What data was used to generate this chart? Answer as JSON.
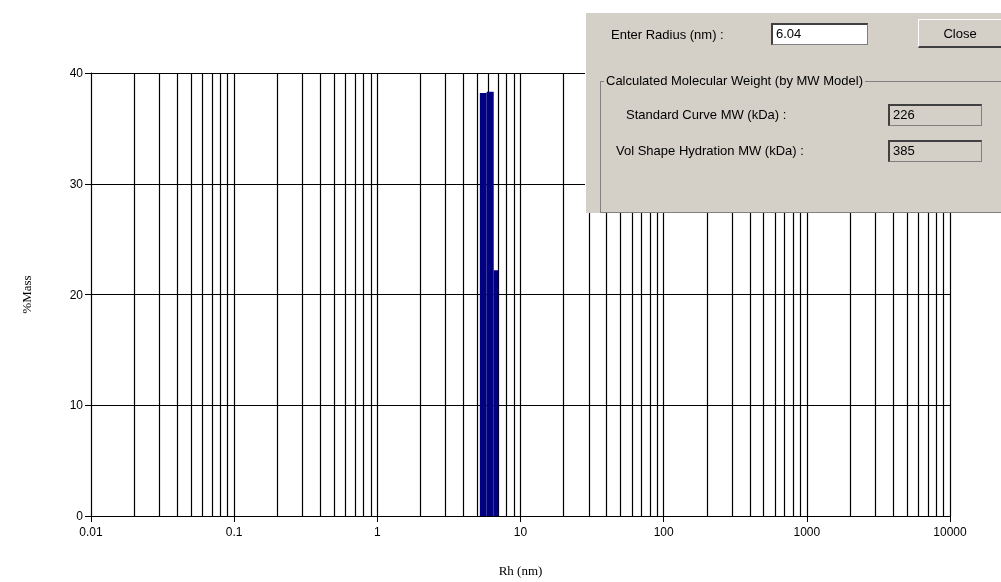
{
  "chart_data": {
    "type": "histogram",
    "xlabel": "Rh (nm)",
    "ylabel": "%Mass",
    "bins": [
      5.2,
      5.8,
      6.5,
      7.0
    ],
    "values": [
      38.2,
      38.3,
      22.2
    ],
    "color": "#000080",
    "log": "x",
    "xlim": [
      0.01,
      10000
    ],
    "xticks": [
      0.01,
      {
        "value": 0.02,
        "label": null
      },
      {
        "value": 0.03,
        "label": null
      },
      {
        "value": 0.04,
        "label": null
      },
      {
        "value": 0.05,
        "label": null
      },
      {
        "value": 0.06,
        "label": null
      },
      {
        "value": 0.07,
        "label": null
      },
      {
        "value": 0.08,
        "label": null
      },
      {
        "value": 0.09,
        "label": null
      },
      0.1,
      {
        "value": 0.2,
        "label": null
      },
      {
        "value": 0.3,
        "label": null
      },
      {
        "value": 0.4,
        "label": null
      },
      {
        "value": 0.5,
        "label": null
      },
      {
        "value": 0.6,
        "label": null
      },
      {
        "value": 0.7,
        "label": null
      },
      {
        "value": 0.8,
        "label": null
      },
      {
        "value": 0.9,
        "label": null
      },
      1,
      {
        "value": 2,
        "label": null
      },
      {
        "value": 3,
        "label": null
      },
      {
        "value": 4,
        "label": null
      },
      {
        "value": 5,
        "label": null
      },
      {
        "value": 6,
        "label": null
      },
      {
        "value": 7,
        "label": null
      },
      {
        "value": 8,
        "label": null
      },
      {
        "value": 9,
        "label": null
      },
      10,
      {
        "value": 20,
        "label": null
      },
      {
        "value": 30,
        "label": null
      },
      {
        "value": 40,
        "label": null
      },
      {
        "value": 50,
        "label": null
      },
      {
        "value": 60,
        "label": null
      },
      {
        "value": 70,
        "label": null
      },
      {
        "value": 80,
        "label": null
      },
      {
        "value": 90,
        "label": null
      },
      100,
      {
        "value": 200,
        "label": null
      },
      {
        "value": 300,
        "label": null
      },
      {
        "value": 400,
        "label": null
      },
      {
        "value": 500,
        "label": null
      },
      {
        "value": 600,
        "label": null
      },
      {
        "value": 700,
        "label": null
      },
      {
        "value": 800,
        "label": null
      },
      {
        "value": 900,
        "label": null
      },
      1000,
      {
        "value": 2000,
        "label": null
      },
      {
        "value": 3000,
        "label": null
      },
      {
        "value": 4000,
        "label": null
      },
      {
        "value": 5000,
        "label": null
      },
      {
        "value": 6000,
        "label": null
      },
      {
        "value": 7000,
        "label": null
      },
      {
        "value": 8000,
        "label": null
      },
      {
        "value": 9000,
        "label": null
      },
      10000
    ],
    "ylim": [
      0,
      40
    ],
    "yticks": [
      0,
      10,
      20,
      30,
      40
    ],
    "grid": true,
    "annotations": [
      "Enter Radius (nm) :",
      "6.04",
      "Close",
      "Calculated Molecular Weight (by MW Model)",
      "Standard Curve MW (kDa) :",
      "226",
      "Vol Shape Hydration MW (kDa) :",
      "385"
    ]
  }
}
